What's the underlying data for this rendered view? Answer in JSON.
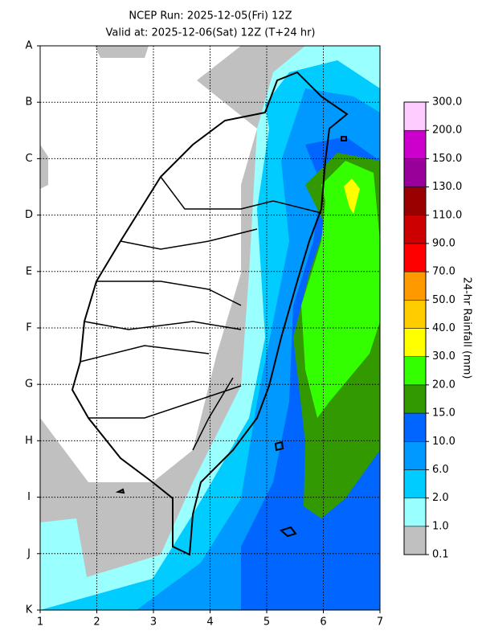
{
  "title": {
    "line1": "NCEP Run: 2025-12-05(Fri) 12Z",
    "line2": "Valid at: 2025-12-06(Sat) 12Z (T+24 hr)"
  },
  "x_ticks": [
    1,
    2,
    3,
    4,
    5,
    6,
    7
  ],
  "y_ticks": [
    "A",
    "B",
    "C",
    "D",
    "E",
    "F",
    "G",
    "H",
    "I",
    "J",
    "K"
  ],
  "colorbar": {
    "label": "24-hr Rainfall (mm)",
    "ticks": [
      {
        "value": 0.1,
        "label": "0.1"
      },
      {
        "value": 1,
        "label": "1.0"
      },
      {
        "value": 2,
        "label": "2.0"
      },
      {
        "value": 6,
        "label": "6.0"
      },
      {
        "value": 10,
        "label": "10.0"
      },
      {
        "value": 15,
        "label": "15.0"
      },
      {
        "value": 20,
        "label": "20.0"
      },
      {
        "value": 30,
        "label": "30.0"
      },
      {
        "value": 40,
        "label": "40.0"
      },
      {
        "value": 50,
        "label": "50.0"
      },
      {
        "value": 70,
        "label": "70.0"
      },
      {
        "value": 90,
        "label": "90.0"
      },
      {
        "value": 110,
        "label": "110.0"
      },
      {
        "value": 130,
        "label": "130.0"
      },
      {
        "value": 150,
        "label": "150.0"
      },
      {
        "value": 200,
        "label": "200.0"
      },
      {
        "value": 300,
        "label": "300.0"
      }
    ],
    "colors": [
      "#c0c0c0",
      "#99ffff",
      "#00ccff",
      "#0099ff",
      "#0066ff",
      "#339900",
      "#33ff00",
      "#ffff00",
      "#ffcc00",
      "#ff9900",
      "#ff0000",
      "#cc0000",
      "#990000",
      "#990099",
      "#cc00cc",
      "#ffccff"
    ]
  }
}
